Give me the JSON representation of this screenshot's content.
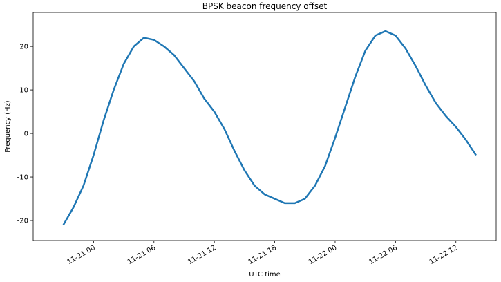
{
  "chart_data": {
    "type": "line",
    "title": "BPSK beacon frequency offset",
    "xlabel": "UTC time",
    "ylabel": "Frequency (Hz)",
    "x": [
      "11-20 21",
      "11-20 22",
      "11-20 23",
      "11-21 00",
      "11-21 01",
      "11-21 02",
      "11-21 03",
      "11-21 04",
      "11-21 05",
      "11-21 06",
      "11-21 07",
      "11-21 08",
      "11-21 09",
      "11-21 10",
      "11-21 11",
      "11-21 12",
      "11-21 13",
      "11-21 14",
      "11-21 15",
      "11-21 16",
      "11-21 17",
      "11-21 18",
      "11-21 19",
      "11-21 20",
      "11-21 21",
      "11-21 22",
      "11-21 23",
      "11-22 00",
      "11-22 01",
      "11-22 02",
      "11-22 03",
      "11-22 04",
      "11-22 05",
      "11-22 06",
      "11-22 07",
      "11-22 08",
      "11-22 09",
      "11-22 10",
      "11-22 11",
      "11-22 12",
      "11-22 13",
      "11-22 14"
    ],
    "series": [
      {
        "color": "#1f77b4",
        "values": [
          -21,
          -17,
          -12,
          -5,
          3,
          10,
          16,
          20,
          22,
          21.5,
          20,
          18,
          15,
          12,
          8,
          5,
          1,
          -4,
          -8.5,
          -12,
          -14,
          -15,
          -16,
          -16,
          -15,
          -12,
          -7.5,
          -1,
          6,
          13,
          19,
          22.5,
          23.5,
          22.5,
          19.5,
          15.5,
          11,
          7,
          4,
          1.5,
          -1.5,
          -5
        ]
      }
    ],
    "xlim": [
      "11-20 18",
      "11-22 16"
    ],
    "xticks": [
      "11-21 00",
      "11-21 06",
      "11-21 12",
      "11-21 18",
      "11-22 00",
      "11-22 06",
      "11-22 12"
    ],
    "ylim": [
      -24.6,
      27.8
    ],
    "yticks": [
      -20,
      -10,
      0,
      10,
      20
    ]
  }
}
